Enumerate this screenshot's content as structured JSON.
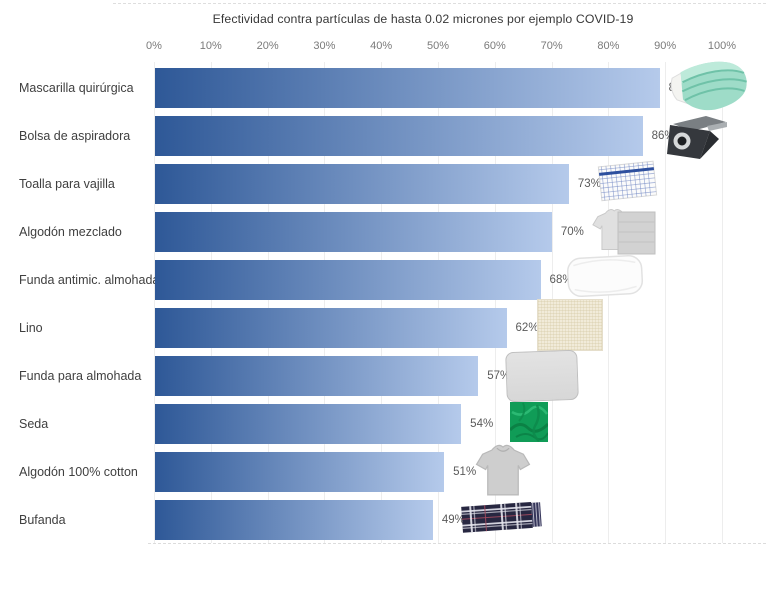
{
  "chart_data": {
    "type": "bar",
    "orientation": "horizontal",
    "title": "Efectividad contra partículas de hasta 0.02 micrones por ejemplo COVID-19",
    "categories": [
      "Mascarilla quirúrgica",
      "Bolsa de aspiradora",
      "Toalla para vajilla",
      "Algodón mezclado",
      "Funda antimic. almohada",
      "Lino",
      "Funda para almohada",
      "Seda",
      "Algodón 100% cotton",
      "Bufanda"
    ],
    "values": [
      89,
      86,
      73,
      70,
      68,
      62,
      57,
      54,
      51,
      49
    ],
    "value_labels": [
      "89%",
      "86%",
      "73%",
      "70%",
      "68%",
      "62%",
      "57%",
      "54%",
      "51%",
      "49%"
    ],
    "x_ticks": [
      "0%",
      "10%",
      "20%",
      "30%",
      "40%",
      "50%",
      "60%",
      "70%",
      "80%",
      "90%",
      "100%"
    ],
    "xlim": [
      0,
      100
    ],
    "xlabel": "",
    "ylabel": "",
    "grid": "vertical",
    "grid_color": "#ededed",
    "bar_gradient": [
      "#2e5897",
      "#b5caeb"
    ],
    "icons": [
      {
        "name": "surgical-mask-icon",
        "color": "#9edcc8"
      },
      {
        "name": "vacuum-bag-icon",
        "color": "#35383d"
      },
      {
        "name": "dish-towel-icon",
        "color": "#2d4f9e"
      },
      {
        "name": "mixed-cotton-icon",
        "color": "#d2d2d2"
      },
      {
        "name": "pillow-icon",
        "color": "#fcfcfc"
      },
      {
        "name": "linen-icon",
        "color": "#f1ebd9"
      },
      {
        "name": "pillowcase-icon",
        "color": "#d7d7d7"
      },
      {
        "name": "silk-icon",
        "color": "#109c57"
      },
      {
        "name": "cotton-tshirt-icon",
        "color": "#cecece"
      },
      {
        "name": "scarf-icon",
        "color": "#272741"
      }
    ]
  }
}
